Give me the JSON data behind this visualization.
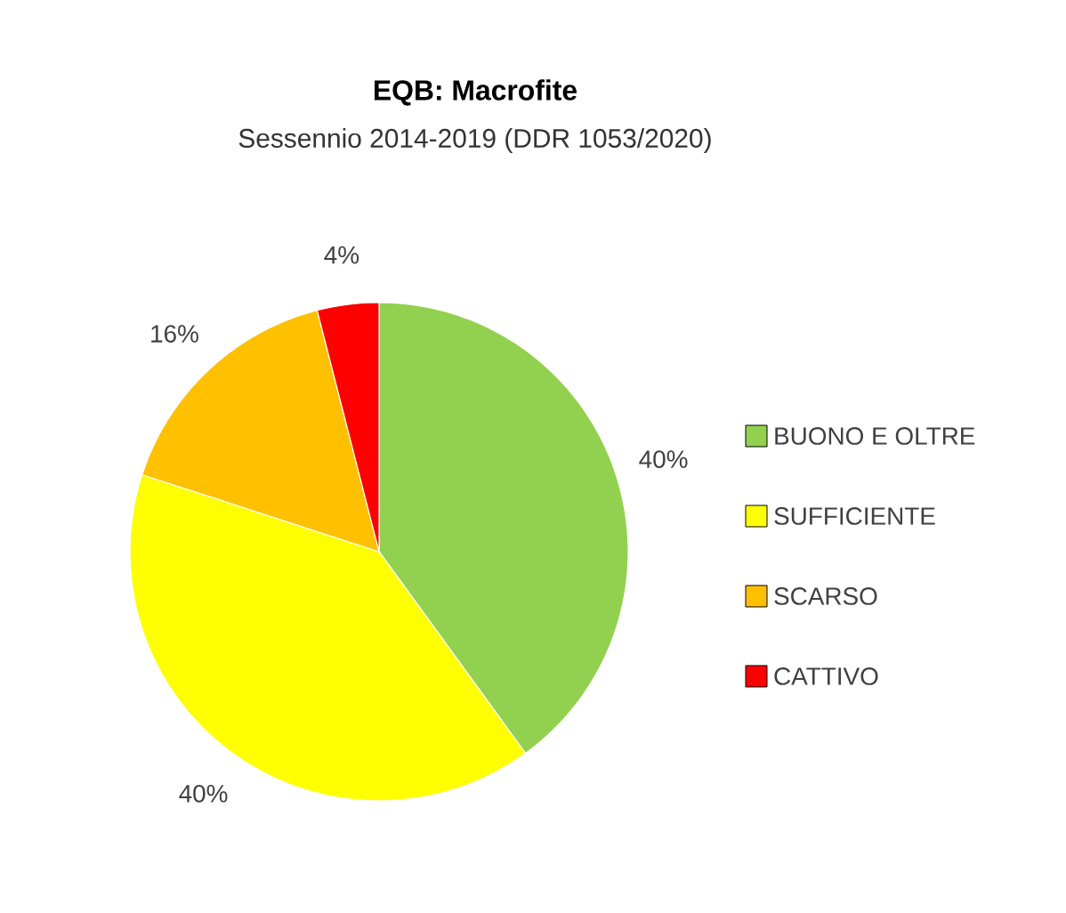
{
  "chart_data": {
    "type": "pie",
    "title": "EQB: Macrofite",
    "subtitle": "Sessennio 2014-2019 (DDR 1053/2020)",
    "categories": [
      "BUONO E OLTRE",
      "SUFFICIENTE",
      "SCARSO",
      "CATTIVO"
    ],
    "values": [
      40,
      40,
      16,
      4
    ],
    "value_labels": [
      "40%",
      "40%",
      "16%",
      "4%"
    ],
    "colors": [
      "#92d050",
      "#ffff00",
      "#ffc000",
      "#ff0000"
    ],
    "legend": "right"
  }
}
